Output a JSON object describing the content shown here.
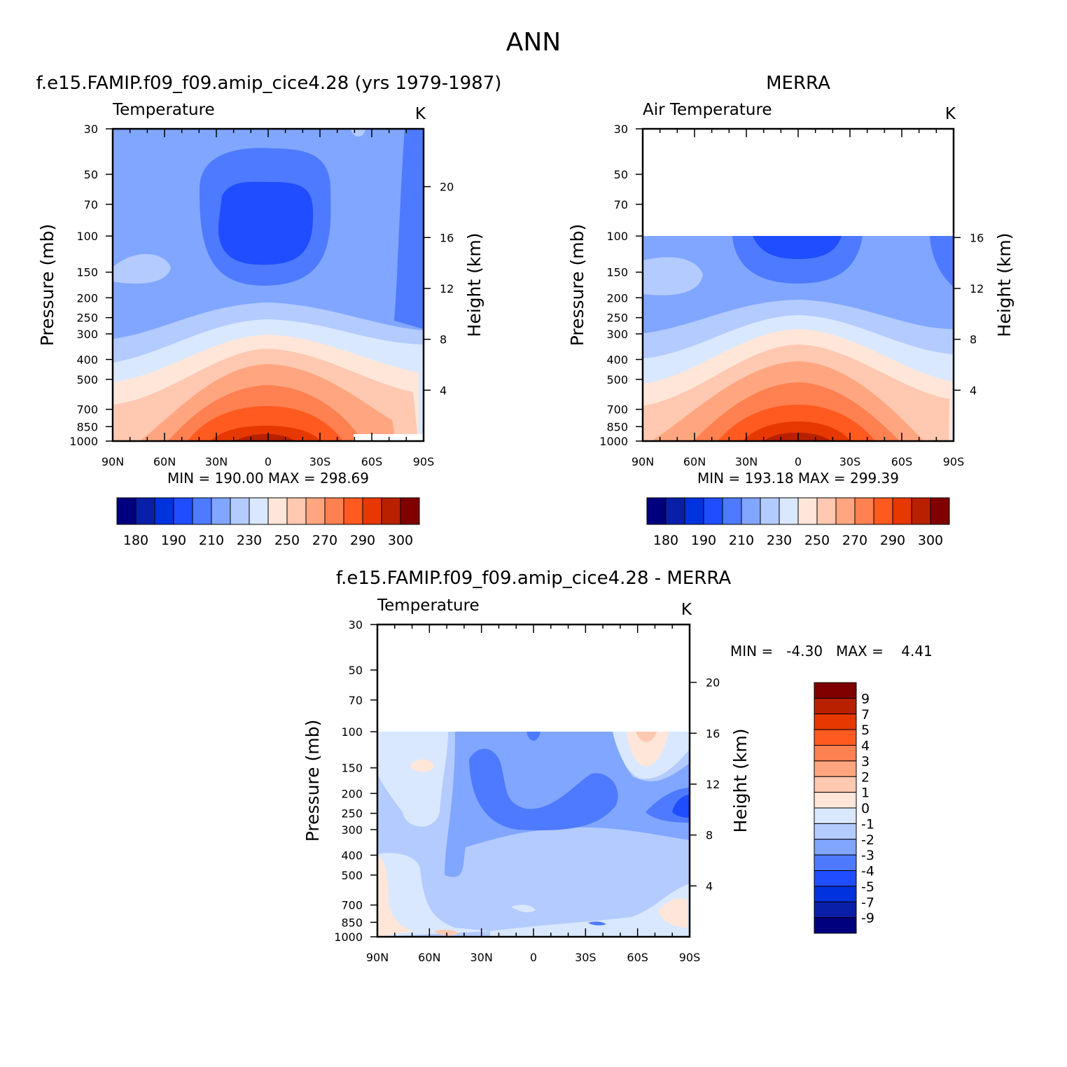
{
  "page": {
    "title": "ANN"
  },
  "panels": {
    "model": {
      "title": "f.e15.FAMIP.f09_f09.amip_cice4.28 (yrs 1979-1987)",
      "subtitle_left": "Temperature",
      "subtitle_right": "K",
      "ylabel_left": "Pressure (mb)",
      "ylabel_right": "Height (km)",
      "stats": "MIN = 190.00   MAX = 298.69"
    },
    "obs": {
      "title": "MERRA",
      "subtitle_left": "Air Temperature",
      "subtitle_right": "K",
      "ylabel_left": "Pressure (mb)",
      "ylabel_right": "Height (km)",
      "stats": "MIN = 193.18   MAX = 299.39"
    },
    "diff": {
      "title": "f.e15.FAMIP.f09_f09.amip_cice4.28 - MERRA",
      "subtitle_left": "Temperature",
      "subtitle_right": "K",
      "ylabel_left": "Pressure (mb)",
      "ylabel_right": "Height (km)",
      "stats": "MIN =   -4.30   MAX =    4.41"
    }
  },
  "colorbars": {
    "absolute": {
      "colors": [
        "#00007f",
        "#0a1fa8",
        "#0033dd",
        "#1f4dff",
        "#4d7aff",
        "#80a6ff",
        "#b3cbff",
        "#d9e8ff",
        "#ffe6d9",
        "#ffc8b0",
        "#ffa680",
        "#ff8050",
        "#ff5a20",
        "#e63800",
        "#b82000",
        "#800000"
      ],
      "labels": [
        "180",
        "190",
        "210",
        "230",
        "250",
        "270",
        "290",
        "300"
      ]
    },
    "difference": {
      "colors": [
        "#800000",
        "#b82000",
        "#e63800",
        "#ff5a20",
        "#ff8050",
        "#ffa680",
        "#ffc8b0",
        "#ffe6d9",
        "#d9e8ff",
        "#b3cbff",
        "#80a6ff",
        "#4d7aff",
        "#1f4dff",
        "#0033dd",
        "#0a1fa8",
        "#00007f"
      ],
      "labels": [
        "9",
        "7",
        "5",
        "4",
        "3",
        "2",
        "1",
        "0",
        "-1",
        "-2",
        "-3",
        "-4",
        "-5",
        "-7",
        "-9"
      ]
    }
  },
  "chart_data": [
    {
      "type": "heatmap",
      "title": "f.e15.FAMIP.f09_f09.amip_cice4.28 (yrs 1979-1987)",
      "subtitle": "Temperature",
      "units": "K",
      "xlabel": "",
      "ylabel": "Pressure (mb)",
      "ylabel_right": "Height (km)",
      "x_ticks": [
        "90N",
        "60N",
        "30N",
        "0",
        "30S",
        "60S",
        "90S"
      ],
      "y_ticks": [
        30,
        50,
        70,
        100,
        150,
        200,
        250,
        300,
        400,
        500,
        700,
        850,
        1000
      ],
      "y_scale": "log",
      "y_reversed": true,
      "y_right_ticks": [
        20,
        16,
        12,
        8,
        4
      ],
      "lat_range": [
        90,
        -90
      ],
      "pressure_range": [
        30,
        1000
      ],
      "min": 190.0,
      "max": 298.69,
      "contour_levels": [
        180,
        190,
        200,
        210,
        220,
        230,
        240,
        250,
        260,
        270,
        280,
        290,
        300
      ]
    },
    {
      "type": "heatmap",
      "title": "MERRA",
      "subtitle": "Air Temperature",
      "units": "K",
      "xlabel": "",
      "ylabel": "Pressure (mb)",
      "ylabel_right": "Height (km)",
      "x_ticks": [
        "90N",
        "60N",
        "30N",
        "0",
        "30S",
        "60S",
        "90S"
      ],
      "y_ticks": [
        30,
        50,
        70,
        100,
        150,
        200,
        250,
        300,
        400,
        500,
        700,
        850,
        1000
      ],
      "y_scale": "log",
      "y_reversed": true,
      "y_right_ticks": [
        16,
        12,
        8,
        4
      ],
      "lat_range": [
        90,
        -90
      ],
      "pressure_range": [
        100,
        1000
      ],
      "min": 193.18,
      "max": 299.39,
      "contour_levels": [
        180,
        190,
        200,
        210,
        220,
        230,
        240,
        250,
        260,
        270,
        280,
        290,
        300
      ]
    },
    {
      "type": "heatmap",
      "title": "f.e15.FAMIP.f09_f09.amip_cice4.28 - MERRA",
      "subtitle": "Temperature",
      "units": "K",
      "xlabel": "",
      "ylabel": "Pressure (mb)",
      "ylabel_right": "Height (km)",
      "x_ticks": [
        "90N",
        "60N",
        "30N",
        "0",
        "30S",
        "60S",
        "90S"
      ],
      "y_ticks": [
        30,
        50,
        70,
        100,
        150,
        200,
        250,
        300,
        400,
        500,
        700,
        850,
        1000
      ],
      "y_scale": "log",
      "y_reversed": true,
      "y_right_ticks": [
        20,
        16,
        12,
        8,
        4
      ],
      "lat_range": [
        90,
        -90
      ],
      "pressure_range": [
        100,
        1000
      ],
      "min": -4.3,
      "max": 4.41,
      "contour_levels": [
        -9,
        -7,
        -5,
        -4,
        -3,
        -2,
        -1,
        0,
        1,
        2,
        3,
        4,
        5,
        7,
        9
      ]
    }
  ]
}
